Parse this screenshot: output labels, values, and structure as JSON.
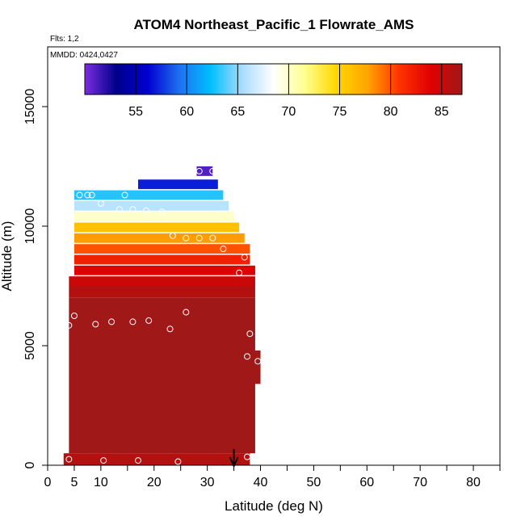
{
  "chart_data": {
    "type": "heatmap",
    "title": "ATOM4 Northeast_Pacific_1 Flowrate_AMS",
    "flights_label": "Flts: 1,2",
    "dates_label": "MMDD: 0424,0427",
    "xlabel": "Latitude (deg N)",
    "ylabel": "Altitude (m)",
    "xlim": [
      0,
      85
    ],
    "ylim": [
      0,
      17500
    ],
    "x_ticks": [
      0,
      5,
      10,
      20,
      30,
      40,
      50,
      60,
      70,
      80
    ],
    "x_minor_ticks": [
      15,
      25,
      35,
      45,
      55,
      65,
      75,
      85
    ],
    "y_ticks": [
      0,
      5000,
      10000,
      15000
    ],
    "colorbar": {
      "min": 50,
      "max": 87,
      "ticks": [
        55,
        60,
        65,
        70,
        75,
        80,
        85
      ],
      "colors": [
        "#7a2ee0",
        "#00008b",
        "#0000d0",
        "#1e6ff0",
        "#00bfff",
        "#a8dcff",
        "#ffffff",
        "#ffff90",
        "#ffd700",
        "#ffa500",
        "#ff3300",
        "#e00000",
        "#a01818"
      ]
    },
    "arrow_x": 35,
    "cells": [
      {
        "lat0": 28,
        "lat1": 31,
        "alt0": 12100,
        "alt1": 12500,
        "v": 51
      },
      {
        "lat0": 17,
        "lat1": 32,
        "alt0": 11550,
        "alt1": 11950,
        "v": 57
      },
      {
        "lat0": 5,
        "lat1": 33,
        "alt0": 11100,
        "alt1": 11500,
        "v": 63
      },
      {
        "lat0": 5,
        "lat1": 34,
        "alt0": 10650,
        "alt1": 11050,
        "v": 66
      },
      {
        "lat0": 5,
        "lat1": 35,
        "alt0": 10200,
        "alt1": 10600,
        "v": 70
      },
      {
        "lat0": 5,
        "lat1": 36,
        "alt0": 9750,
        "alt1": 10150,
        "v": 76
      },
      {
        "lat0": 5,
        "lat1": 37,
        "alt0": 9300,
        "alt1": 9700,
        "v": 78
      },
      {
        "lat0": 5,
        "lat1": 38,
        "alt0": 8850,
        "alt1": 9250,
        "v": 80
      },
      {
        "lat0": 5,
        "lat1": 38,
        "alt0": 8400,
        "alt1": 8800,
        "v": 82
      },
      {
        "lat0": 5,
        "lat1": 39,
        "alt0": 7950,
        "alt1": 8350,
        "v": 84
      },
      {
        "lat0": 4,
        "lat1": 39,
        "alt0": 7500,
        "alt1": 7900,
        "v": 85
      },
      {
        "lat0": 4,
        "lat1": 39,
        "alt0": 7000,
        "alt1": 7500,
        "v": 86
      },
      {
        "lat0": 4,
        "lat1": 39,
        "alt0": 500,
        "alt1": 7000,
        "v": 87
      },
      {
        "lat0": 38,
        "lat1": 40,
        "alt0": 3400,
        "alt1": 4800,
        "v": 87
      },
      {
        "lat0": 3,
        "lat1": 38,
        "alt0": 0,
        "alt1": 500,
        "v": 86
      }
    ],
    "points": [
      {
        "lat": 28.5,
        "alt": 12300
      },
      {
        "lat": 31,
        "alt": 12300
      },
      {
        "lat": 6,
        "alt": 11300
      },
      {
        "lat": 7.5,
        "alt": 11300
      },
      {
        "lat": 8.3,
        "alt": 11300
      },
      {
        "lat": 14.5,
        "alt": 11300
      },
      {
        "lat": 10,
        "alt": 10950
      },
      {
        "lat": 13.5,
        "alt": 10700
      },
      {
        "lat": 16,
        "alt": 10700
      },
      {
        "lat": 18.5,
        "alt": 10650
      },
      {
        "lat": 21.5,
        "alt": 10600
      },
      {
        "lat": 23.5,
        "alt": 9600
      },
      {
        "lat": 26,
        "alt": 9500
      },
      {
        "lat": 28.5,
        "alt": 9500
      },
      {
        "lat": 31,
        "alt": 9500
      },
      {
        "lat": 33,
        "alt": 9050
      },
      {
        "lat": 37,
        "alt": 8700
      },
      {
        "lat": 36,
        "alt": 8050
      },
      {
        "lat": 4,
        "alt": 5850
      },
      {
        "lat": 5,
        "alt": 6250
      },
      {
        "lat": 9,
        "alt": 5900
      },
      {
        "lat": 12,
        "alt": 6000
      },
      {
        "lat": 16,
        "alt": 6000
      },
      {
        "lat": 19,
        "alt": 6050
      },
      {
        "lat": 23,
        "alt": 5700
      },
      {
        "lat": 26,
        "alt": 6400
      },
      {
        "lat": 38,
        "alt": 5500
      },
      {
        "lat": 37.5,
        "alt": 4550
      },
      {
        "lat": 39.5,
        "alt": 4350
      },
      {
        "lat": 4,
        "alt": 250
      },
      {
        "lat": 10.5,
        "alt": 200
      },
      {
        "lat": 17,
        "alt": 200
      },
      {
        "lat": 24.5,
        "alt": 150
      },
      {
        "lat": 37.5,
        "alt": 350
      }
    ]
  }
}
